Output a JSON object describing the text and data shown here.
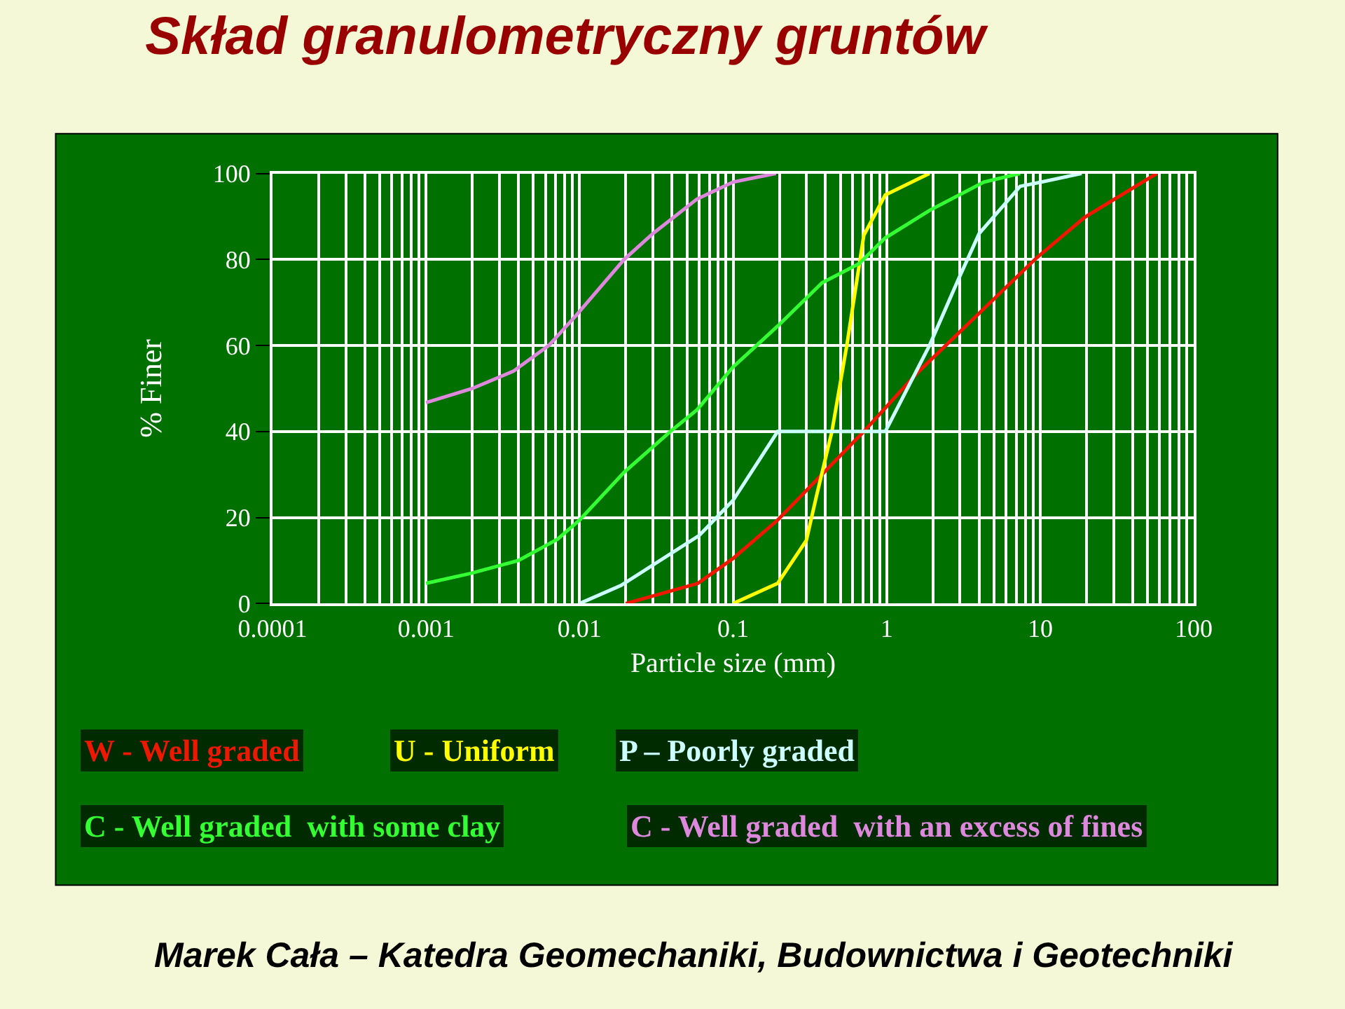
{
  "chart_data": {
    "type": "line",
    "title": "Skład granulometryczny gruntów",
    "xlabel": "Particle size (mm)",
    "ylabel": "% Finer",
    "log": "x",
    "xlim": [
      0.0001,
      100
    ],
    "xticks": [
      0.0001,
      0.001,
      0.01,
      0.1,
      1,
      10,
      100
    ],
    "ylim": [
      0,
      100
    ],
    "yticks": [
      0,
      20,
      40,
      60,
      80,
      100
    ],
    "grid": true,
    "legend": false,
    "marker": "none",
    "line_style": "solid",
    "series": [
      {
        "name": "W - Well graded",
        "color": "#ee1800",
        "x": [
          0.02,
          0.059,
          0.1,
          0.195,
          0.71,
          1.58,
          9.5,
          19.5,
          57.5
        ],
        "values": [
          0,
          4.7,
          10.5,
          19.4,
          40,
          53.6,
          80.4,
          89.8,
          100
        ]
      },
      {
        "name": "U - Uniform",
        "color": "#ffff00",
        "x": [
          0.1,
          0.195,
          0.3,
          0.35,
          0.44,
          0.55,
          0.71,
          0.98,
          1.9
        ],
        "values": [
          0,
          4.7,
          14.7,
          25.2,
          40,
          60,
          85.6,
          95,
          100
        ]
      },
      {
        "name": "P – Poorly graded",
        "color": "#ccffff",
        "x": [
          0.01,
          0.0186,
          0.06,
          0.1,
          0.195,
          0.98,
          1.9,
          2.9,
          4,
          7.4,
          10.2,
          18.6
        ],
        "values": [
          0,
          4.2,
          15.8,
          24,
          40,
          40,
          60,
          75,
          86,
          97,
          98,
          100
        ]
      },
      {
        "name": "C - Well graded  with some clay",
        "color": "#33ff33",
        "x": [
          0.001,
          0.00195,
          0.004,
          0.0072,
          0.01,
          0.0195,
          0.039,
          0.058,
          0.1,
          0.195,
          0.38,
          0.66,
          0.98,
          1.9,
          4.3,
          7.4
        ],
        "values": [
          4.7,
          7,
          10,
          15,
          19.4,
          30.5,
          40,
          45,
          55,
          64.5,
          74.6,
          79,
          85,
          91.4,
          98,
          100
        ]
      },
      {
        "name": "C - Well graded  with an excess of fines",
        "color": "#dd88dd",
        "x": [
          0.001,
          0.002,
          0.0037,
          0.0063,
          0.0095,
          0.0195,
          0.03,
          0.058,
          0.1,
          0.19
        ],
        "values": [
          46.7,
          50,
          54,
          60,
          67,
          80,
          86,
          94,
          98,
          100
        ]
      }
    ],
    "annotations": [
      "Marek Cała – Katedra Geomechaniki, Budownictwa i Geotechniki"
    ]
  }
}
